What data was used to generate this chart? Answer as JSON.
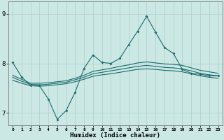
{
  "xlabel": "Humidex (Indice chaleur)",
  "ylabel": "",
  "bg_color": "#cce8e4",
  "grid_color": "#aacfcc",
  "line_color": "#1a6b6b",
  "xlim": [
    -0.5,
    23.5
  ],
  "ylim": [
    6.75,
    9.25
  ],
  "yticks": [
    7,
    8,
    9
  ],
  "xticks": [
    0,
    1,
    2,
    3,
    4,
    5,
    6,
    7,
    8,
    9,
    10,
    11,
    12,
    13,
    14,
    15,
    16,
    17,
    18,
    19,
    20,
    21,
    22,
    23
  ],
  "series": {
    "main": {
      "x": [
        0,
        1,
        2,
        3,
        4,
        5,
        6,
        7,
        8,
        9,
        10,
        11,
        12,
        13,
        14,
        15,
        16,
        17,
        18,
        19,
        20,
        21,
        22,
        23
      ],
      "y": [
        8.02,
        7.73,
        7.55,
        7.55,
        7.28,
        6.87,
        7.05,
        7.42,
        7.9,
        8.17,
        8.02,
        8.0,
        8.1,
        8.38,
        8.65,
        8.95,
        8.63,
        8.32,
        8.2,
        7.88,
        7.8,
        7.78,
        7.75,
        7.75
      ]
    },
    "band1": {
      "x": [
        0,
        1,
        2,
        3,
        4,
        5,
        6,
        7,
        8,
        9,
        10,
        11,
        12,
        13,
        14,
        15,
        16,
        17,
        18,
        19,
        20,
        21,
        22,
        23
      ],
      "y": [
        7.76,
        7.68,
        7.6,
        7.6,
        7.61,
        7.63,
        7.65,
        7.7,
        7.76,
        7.84,
        7.87,
        7.9,
        7.94,
        7.97,
        8.01,
        8.03,
        8.01,
        7.99,
        7.98,
        7.96,
        7.91,
        7.86,
        7.83,
        7.8
      ]
    },
    "band2": {
      "x": [
        0,
        1,
        2,
        3,
        4,
        5,
        6,
        7,
        8,
        9,
        10,
        11,
        12,
        13,
        14,
        15,
        16,
        17,
        18,
        19,
        20,
        21,
        22,
        23
      ],
      "y": [
        7.72,
        7.64,
        7.58,
        7.57,
        7.58,
        7.6,
        7.62,
        7.67,
        7.72,
        7.79,
        7.82,
        7.85,
        7.88,
        7.91,
        7.94,
        7.96,
        7.94,
        7.92,
        7.91,
        7.89,
        7.85,
        7.8,
        7.77,
        7.75
      ]
    },
    "band3": {
      "x": [
        0,
        1,
        2,
        3,
        4,
        5,
        6,
        7,
        8,
        9,
        10,
        11,
        12,
        13,
        14,
        15,
        16,
        17,
        18,
        19,
        20,
        21,
        22,
        23
      ],
      "y": [
        7.66,
        7.6,
        7.55,
        7.54,
        7.55,
        7.57,
        7.59,
        7.63,
        7.68,
        7.74,
        7.77,
        7.79,
        7.82,
        7.85,
        7.88,
        7.89,
        7.88,
        7.86,
        7.85,
        7.83,
        7.79,
        7.75,
        7.72,
        7.7
      ]
    }
  }
}
